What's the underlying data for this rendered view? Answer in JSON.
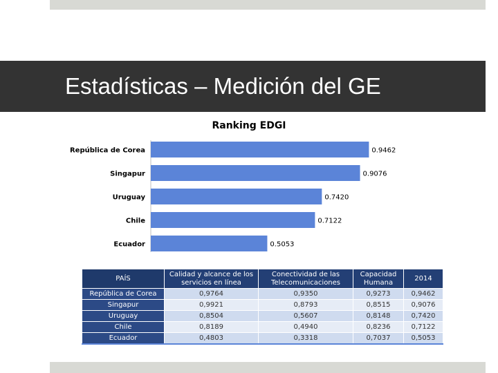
{
  "slide": {
    "title": "Estadísticas – Medición del GE"
  },
  "colors": {
    "bar": "#5b84d8",
    "title_bar": "#333333",
    "table_header": "#233f75",
    "table_country": "#2c4a86",
    "row_odd": "#cfdbef",
    "row_even": "#e6ecf6"
  },
  "chart_data": {
    "type": "bar",
    "orientation": "horizontal",
    "title": "Ranking EDGI",
    "categories": [
      "República de Corea",
      "Singapur",
      "Uruguay",
      "Chile",
      "Ecuador"
    ],
    "values": [
      0.9462,
      0.9076,
      0.742,
      0.7122,
      0.5053
    ],
    "value_labels": [
      "0.9462",
      "0.9076",
      "0.7420",
      "0.7122",
      "0.5053"
    ],
    "xlim": [
      0,
      1.08
    ],
    "grid": false,
    "legend": "none"
  },
  "table": {
    "headers": [
      "PAÍS",
      "Calidad y alcance de los servicios en línea",
      "Conectividad de las Telecomunicaciones",
      "Capacidad Humana",
      "2014"
    ],
    "rows": [
      [
        "República de Corea",
        "0,9764",
        "0,9350",
        "0,9273",
        "0,9462"
      ],
      [
        "Singapur",
        "0,9921",
        "0,8793",
        "0,8515",
        "0,9076"
      ],
      [
        "Uruguay",
        "0,8504",
        "0,5607",
        "0,8148",
        "0,7420"
      ],
      [
        "Chile",
        "0,8189",
        "0,4940",
        "0,8236",
        "0,7122"
      ],
      [
        "Ecuador",
        "0,4803",
        "0,3318",
        "0,7037",
        "0,5053"
      ]
    ]
  }
}
